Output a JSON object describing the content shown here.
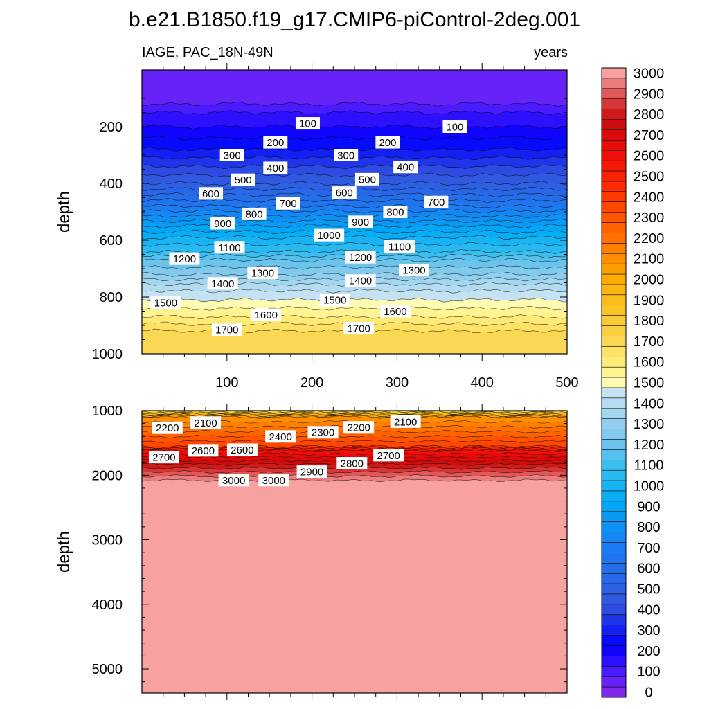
{
  "chart_data": {
    "type": "contour",
    "title": "b.e21.B1850.f19_g17.CMIP6-piControl-2deg.001",
    "variable_label": "IAGE, PAC_18N-49N",
    "units_label": "years",
    "x": {
      "min": 0,
      "max": 500,
      "ticks": [
        100,
        200,
        300,
        400,
        500
      ],
      "label": ""
    },
    "panels": [
      {
        "name": "upper",
        "ylabel": "depth",
        "ylim": [
          0,
          1000
        ],
        "yticks": [
          200,
          400,
          600,
          800,
          1000
        ],
        "xtick_labels_shown": true,
        "contour_levels": {
          "start": 100,
          "end": 1700,
          "step": 50
        },
        "contour_labels": [
          {
            "text": "100",
            "x": 195,
            "y": 188
          },
          {
            "text": "100",
            "x": 368,
            "y": 200
          },
          {
            "text": "200",
            "x": 157,
            "y": 255
          },
          {
            "text": "200",
            "x": 289,
            "y": 255
          },
          {
            "text": "300",
            "x": 106,
            "y": 300
          },
          {
            "text": "300",
            "x": 240,
            "y": 300
          },
          {
            "text": "400",
            "x": 157,
            "y": 345
          },
          {
            "text": "400",
            "x": 310,
            "y": 342
          },
          {
            "text": "500",
            "x": 119,
            "y": 387
          },
          {
            "text": "500",
            "x": 265,
            "y": 385
          },
          {
            "text": "600",
            "x": 81,
            "y": 435
          },
          {
            "text": "600",
            "x": 238,
            "y": 432
          },
          {
            "text": "700",
            "x": 172,
            "y": 470
          },
          {
            "text": "700",
            "x": 346,
            "y": 465
          },
          {
            "text": "800",
            "x": 132,
            "y": 507
          },
          {
            "text": "800",
            "x": 298,
            "y": 500
          },
          {
            "text": "900",
            "x": 95,
            "y": 540
          },
          {
            "text": "900",
            "x": 257,
            "y": 535
          },
          {
            "text": "1000",
            "x": 220,
            "y": 582
          },
          {
            "text": "1100",
            "x": 103,
            "y": 625
          },
          {
            "text": "1100",
            "x": 303,
            "y": 622
          },
          {
            "text": "1200",
            "x": 50,
            "y": 665
          },
          {
            "text": "1200",
            "x": 257,
            "y": 660
          },
          {
            "text": "1300",
            "x": 142,
            "y": 715
          },
          {
            "text": "1300",
            "x": 320,
            "y": 705
          },
          {
            "text": "1400",
            "x": 95,
            "y": 752
          },
          {
            "text": "1400",
            "x": 257,
            "y": 742
          },
          {
            "text": "1500",
            "x": 28,
            "y": 820
          },
          {
            "text": "1500",
            "x": 227,
            "y": 810
          },
          {
            "text": "1600",
            "x": 146,
            "y": 862
          },
          {
            "text": "1600",
            "x": 298,
            "y": 850
          },
          {
            "text": "1700",
            "x": 100,
            "y": 915
          },
          {
            "text": "1700",
            "x": 255,
            "y": 910
          }
        ]
      },
      {
        "name": "lower",
        "ylabel": "depth",
        "ylim": [
          1000,
          5375
        ],
        "yticks": [
          1000,
          2000,
          3000,
          4000,
          5000
        ],
        "xtick_labels_shown": false,
        "contour_levels": {
          "start": 1750,
          "end": 3000,
          "step": 50
        },
        "contour_labels": [
          {
            "text": "2200",
            "x": 30,
            "y": 1265
          },
          {
            "text": "2100",
            "x": 75,
            "y": 1185
          },
          {
            "text": "2100",
            "x": 310,
            "y": 1170
          },
          {
            "text": "2400",
            "x": 163,
            "y": 1400
          },
          {
            "text": "2300",
            "x": 213,
            "y": 1335
          },
          {
            "text": "2200",
            "x": 255,
            "y": 1260
          },
          {
            "text": "2700",
            "x": 26,
            "y": 1720
          },
          {
            "text": "2600",
            "x": 72,
            "y": 1615
          },
          {
            "text": "2600",
            "x": 118,
            "y": 1605
          },
          {
            "text": "2700",
            "x": 290,
            "y": 1690
          },
          {
            "text": "2800",
            "x": 247,
            "y": 1815
          },
          {
            "text": "2900",
            "x": 200,
            "y": 1945
          },
          {
            "text": "3000",
            "x": 108,
            "y": 2075
          },
          {
            "text": "3000",
            "x": 155,
            "y": 2075
          }
        ]
      }
    ],
    "colorbar": {
      "labels": [
        "3000",
        "2900",
        "2800",
        "2700",
        "2600",
        "2500",
        "2400",
        "2300",
        "2200",
        "2100",
        "2000",
        "1900",
        "1800",
        "1700",
        "1600",
        "1500",
        "1400",
        "1300",
        "1200",
        "1100",
        "1000",
        "900",
        "800",
        "700",
        "600",
        "500",
        "400",
        "300",
        "200",
        "100",
        "0"
      ],
      "min": 0,
      "max": 3050,
      "step": 50,
      "anchor_colors": [
        {
          "v": 0,
          "c": "#8a2be2"
        },
        {
          "v": 100,
          "c": "#5a20ff"
        },
        {
          "v": 250,
          "c": "#0000ff"
        },
        {
          "v": 450,
          "c": "#3355dd"
        },
        {
          "v": 700,
          "c": "#1e78f0"
        },
        {
          "v": 950,
          "c": "#00aaf5"
        },
        {
          "v": 1100,
          "c": "#30bcf0"
        },
        {
          "v": 1250,
          "c": "#78c6ec"
        },
        {
          "v": 1475,
          "c": "#c5e2f2"
        },
        {
          "v": 1500,
          "c": "#ffffc4"
        },
        {
          "v": 1600,
          "c": "#fff080"
        },
        {
          "v": 1750,
          "c": "#fad34a"
        },
        {
          "v": 1900,
          "c": "#f9c21e"
        },
        {
          "v": 2050,
          "c": "#ffa500"
        },
        {
          "v": 2250,
          "c": "#ff6a00"
        },
        {
          "v": 2450,
          "c": "#ff3200"
        },
        {
          "v": 2650,
          "c": "#f00a0a"
        },
        {
          "v": 2800,
          "c": "#c80c0c"
        },
        {
          "v": 2900,
          "c": "#dd4444"
        },
        {
          "v": 3000,
          "c": "#f09090"
        },
        {
          "v": 3050,
          "c": "#ffb2b2"
        }
      ]
    }
  }
}
